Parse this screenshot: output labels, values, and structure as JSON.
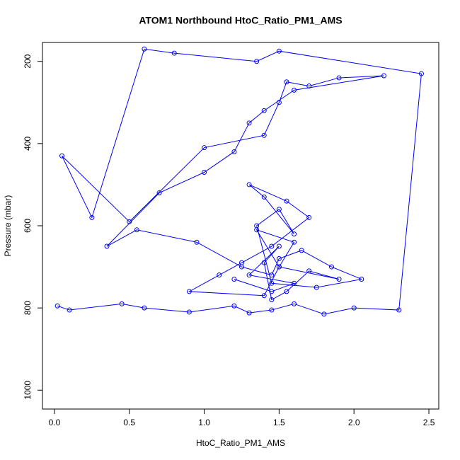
{
  "chart_data": {
    "type": "line",
    "title": "ATOM1 Northbound HtoC_Ratio_PM1_AMS",
    "x_label": "HtoC_Ratio_PM1_AMS",
    "y_label": "Pressure (mbar)",
    "x": [
      0.02,
      0.1,
      0.45,
      0.6,
      0.9,
      1.2,
      1.3,
      1.45,
      1.6,
      1.8,
      2.0,
      2.3,
      2.45,
      1.5,
      1.35,
      0.8,
      0.6,
      0.25,
      0.05,
      0.5,
      1.0,
      1.4,
      1.5,
      1.55,
      1.7,
      1.9,
      2.2,
      1.6,
      1.4,
      1.3,
      1.2,
      1.0,
      0.7,
      0.35,
      0.55,
      0.95,
      1.25,
      1.45,
      1.5,
      1.65,
      1.85,
      2.05,
      1.75,
      1.45,
      1.35,
      1.5,
      1.6,
      1.4,
      1.3,
      1.55,
      1.7,
      1.45,
      1.25,
      1.1,
      0.9,
      1.4,
      1.5,
      1.6,
      1.35,
      1.5,
      1.9,
      1.7,
      1.55,
      1.45,
      1.4,
      1.5,
      1.3,
      1.6,
      1.45,
      1.2
    ],
    "series": [
      {
        "color": "#0000ff",
        "values": [
          795,
          805,
          790,
          800,
          810,
          795,
          812,
          805,
          790,
          815,
          800,
          805,
          230,
          175,
          200,
          180,
          170,
          580,
          430,
          590,
          410,
          380,
          300,
          250,
          260,
          240,
          235,
          270,
          320,
          350,
          420,
          470,
          520,
          650,
          610,
          640,
          700,
          720,
          680,
          660,
          700,
          730,
          750,
          740,
          600,
          560,
          620,
          530,
          500,
          540,
          580,
          650,
          690,
          720,
          760,
          770,
          700,
          640,
          610,
          700,
          730,
          710,
          760,
          780,
          690,
          650,
          720,
          740,
          760,
          730
        ]
      }
    ],
    "markers": true,
    "xlim": [
      -0.08,
      2.566
    ],
    "ylim": [
      1046,
      154
    ],
    "xticks": [
      {
        "value": 0,
        "label": "0.0"
      },
      0.5,
      {
        "value": 1,
        "label": "1.0"
      },
      1.5,
      {
        "value": 2,
        "label": "2.0"
      },
      2.5
    ],
    "yticks": [
      200,
      400,
      600,
      800,
      1000
    ]
  }
}
